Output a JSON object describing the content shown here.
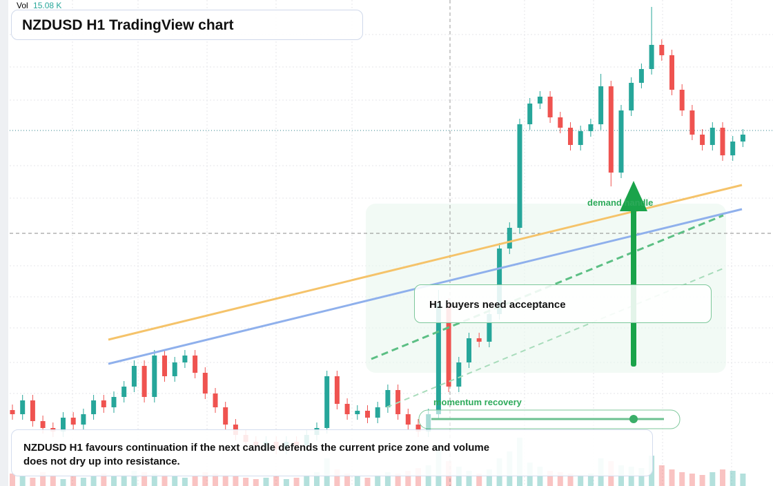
{
  "header": {
    "vol_label": "Vol",
    "vol_value": "15.08 K",
    "title": "NZDUSD H1 TradingView chart"
  },
  "chart_data": {
    "type": "candlestick",
    "ylim": [
      0,
      704
    ],
    "up_color": "#26a69a",
    "down_color": "#ef5350",
    "open": [
      110,
      104,
      124,
      94,
      84,
      79,
      99,
      89,
      104,
      124,
      114,
      129,
      144,
      174,
      129,
      189,
      159,
      179,
      189,
      164,
      134,
      114,
      89,
      74,
      64,
      59,
      64,
      54,
      64,
      59,
      74,
      84,
      159,
      119,
      104,
      109,
      99,
      114,
      139,
      104,
      89,
      79,
      104,
      264,
      144,
      179,
      214,
      209,
      249,
      344,
      374,
      524,
      554,
      564,
      534,
      519,
      494,
      514,
      524,
      579,
      454,
      544,
      584,
      604,
      639,
      624,
      574,
      544,
      509,
      494,
      519,
      479,
      499
    ],
    "high": [
      118,
      132,
      132,
      102,
      92,
      107,
      107,
      112,
      132,
      132,
      137,
      152,
      182,
      182,
      197,
      197,
      187,
      197,
      197,
      172,
      142,
      122,
      97,
      82,
      72,
      72,
      72,
      72,
      72,
      82,
      92,
      167,
      167,
      127,
      117,
      117,
      122,
      147,
      147,
      112,
      97,
      112,
      284,
      272,
      187,
      222,
      222,
      257,
      352,
      382,
      532,
      562,
      572,
      572,
      542,
      527,
      522,
      532,
      597,
      587,
      552,
      592,
      612,
      694,
      647,
      632,
      582,
      552,
      517,
      527,
      527,
      507,
      517
    ],
    "low": [
      96,
      96,
      86,
      76,
      71,
      71,
      81,
      81,
      96,
      106,
      106,
      121,
      136,
      121,
      121,
      151,
      151,
      171,
      156,
      126,
      106,
      81,
      66,
      56,
      51,
      51,
      46,
      46,
      51,
      51,
      66,
      76,
      111,
      96,
      96,
      91,
      91,
      106,
      96,
      81,
      71,
      71,
      96,
      136,
      136,
      171,
      201,
      201,
      241,
      336,
      366,
      516,
      546,
      526,
      511,
      486,
      486,
      506,
      516,
      434,
      446,
      536,
      576,
      596,
      616,
      566,
      536,
      501,
      486,
      486,
      471,
      471,
      491
    ],
    "close": [
      104,
      124,
      94,
      84,
      79,
      99,
      89,
      104,
      124,
      114,
      129,
      144,
      174,
      129,
      189,
      159,
      179,
      189,
      164,
      134,
      114,
      89,
      74,
      64,
      59,
      64,
      54,
      64,
      59,
      74,
      84,
      159,
      119,
      104,
      109,
      99,
      114,
      139,
      104,
      89,
      79,
      104,
      264,
      144,
      179,
      214,
      209,
      249,
      344,
      374,
      524,
      554,
      564,
      534,
      519,
      494,
      514,
      524,
      579,
      454,
      544,
      584,
      604,
      639,
      624,
      574,
      544,
      509,
      494,
      519,
      479,
      499,
      509
    ],
    "volume": [
      18,
      14,
      12,
      20,
      16,
      10,
      14,
      12,
      15,
      18,
      14,
      16,
      22,
      20,
      18,
      16,
      14,
      12,
      15,
      20,
      18,
      16,
      14,
      12,
      10,
      12,
      14,
      10,
      12,
      16,
      20,
      40,
      24,
      18,
      14,
      12,
      16,
      20,
      18,
      22,
      26,
      30,
      60,
      36,
      28,
      22,
      18,
      24,
      40,
      50,
      70,
      34,
      28,
      22,
      20,
      18,
      16,
      18,
      40,
      36,
      30,
      28,
      26,
      44,
      30,
      24,
      20,
      18,
      16,
      20,
      24,
      22,
      18
    ],
    "volume_ylim": [
      0,
      100
    ]
  },
  "annotations": {
    "demand": "demand handle",
    "callout": "H1 buyers need acceptance",
    "momentum": "momentum recovery"
  },
  "footer": {
    "text": "NZDUSD H1 favours continuation if the next candle defends the current price zone and volume does not dry up into resistance."
  }
}
